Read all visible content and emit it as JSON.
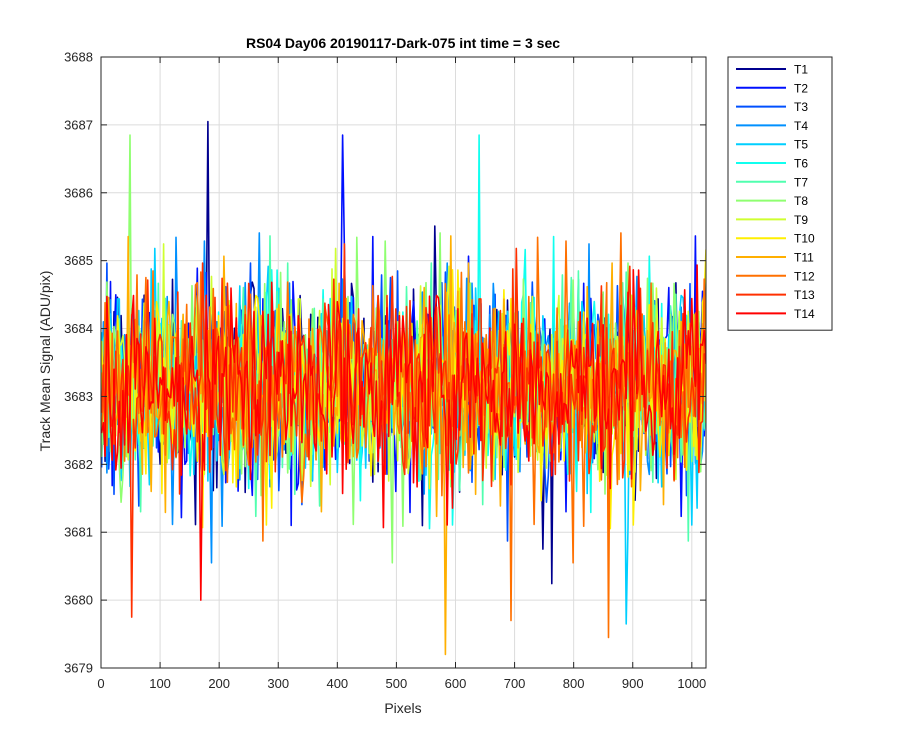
{
  "chart_data": {
    "type": "line",
    "title": "RS04 Day06 20190117-Dark-075 int time = 3 sec",
    "xlabel": "Pixels",
    "ylabel": "Track Mean Signal (ADU/pix)",
    "xlim": [
      0,
      1024
    ],
    "ylim": [
      3679,
      3688
    ],
    "xticks": [
      0,
      100,
      200,
      300,
      400,
      500,
      600,
      700,
      800,
      900,
      1000
    ],
    "yticks": [
      3679,
      3680,
      3681,
      3682,
      3683,
      3684,
      3685,
      3686,
      3687,
      3688
    ],
    "grid": true,
    "legend_position": "outside-top-right",
    "x_range": [
      1,
      1024
    ],
    "series_summary": {
      "typical_center": 3683.2,
      "typical_spread_low": 3681.5,
      "typical_spread_high": 3685.2,
      "max_observed": 3687.05,
      "min_observed": 3679.2
    },
    "notable_points": [
      {
        "series": "T1",
        "x": 182,
        "y": 3687.05
      },
      {
        "series": "T2",
        "x": 408,
        "y": 3686.85
      },
      {
        "series": "T6",
        "x": 640,
        "y": 3686.85
      },
      {
        "series": "T8",
        "x": 48,
        "y": 3686.85
      },
      {
        "series": "T11",
        "x": 582,
        "y": 3679.2
      },
      {
        "series": "T12",
        "x": 695,
        "y": 3679.7
      },
      {
        "series": "T12",
        "x": 860,
        "y": 3679.45
      },
      {
        "series": "T13",
        "x": 52,
        "y": 3679.75
      },
      {
        "series": "T14",
        "x": 168,
        "y": 3680.0
      },
      {
        "series": "T5",
        "x": 890,
        "y": 3679.65
      }
    ],
    "series": [
      {
        "name": "T1",
        "color": "#00008f"
      },
      {
        "name": "T2",
        "color": "#0010ff"
      },
      {
        "name": "T3",
        "color": "#0050ff"
      },
      {
        "name": "T4",
        "color": "#0090ff"
      },
      {
        "name": "T5",
        "color": "#00cfff"
      },
      {
        "name": "T6",
        "color": "#10ffef"
      },
      {
        "name": "T7",
        "color": "#50ffaf"
      },
      {
        "name": "T8",
        "color": "#8fff70"
      },
      {
        "name": "T9",
        "color": "#cfff30"
      },
      {
        "name": "T10",
        "color": "#ffef00"
      },
      {
        "name": "T11",
        "color": "#ffaf00"
      },
      {
        "name": "T12",
        "color": "#ff7000"
      },
      {
        "name": "T13",
        "color": "#ff3000"
      },
      {
        "name": "T14",
        "color": "#ff0000"
      }
    ]
  }
}
